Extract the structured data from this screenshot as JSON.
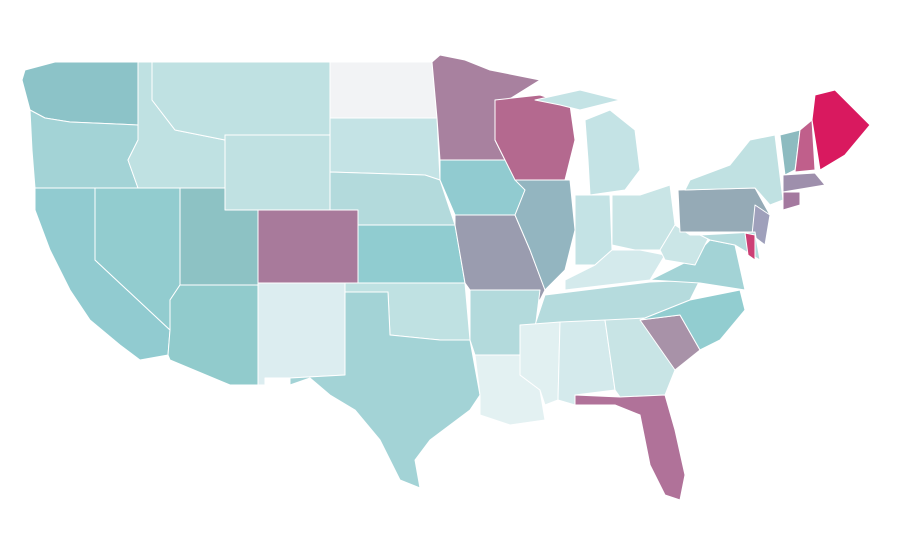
{
  "map": {
    "fills": [
      "#8cc3c8",
      "#a3d3d6",
      "#91cbd0",
      "#92cccf",
      "#bfe1e2",
      "#bfe1e2",
      "#c0e1e2",
      "#8dc2c4",
      "#91cbcc",
      "#a87a9b",
      "#dcedf0",
      "#f2f3f5",
      "#c4e3e5",
      "#b3dadc",
      "#90ccd0",
      "#bfe1e2",
      "#a3d3d6",
      "#a8819f",
      "#91cbd0",
      "#9a9caf",
      "#b3dadc",
      "#e3f1f2",
      "#b4698f",
      "#93b5c0",
      "#c4e3e5",
      "#c4e3e5",
      "#c4e3e5",
      "#c9e5e6",
      "#d4eaec",
      "#b5dbdd",
      "#e1f0f1",
      "#d4eaec",
      "#c8e4e5",
      "#b07299",
      "#a892a8",
      "#92cdd0",
      "#a3d3d6",
      "#cbe6e7",
      "#95aab6",
      "#c0e1e2",
      "#9fa0bb",
      "#b5dbdd",
      "#cc4075",
      "#8dbbc0",
      "#c05f8b",
      "#d9195f",
      "#9e8fac",
      "#a4799f"
    ]
  }
}
